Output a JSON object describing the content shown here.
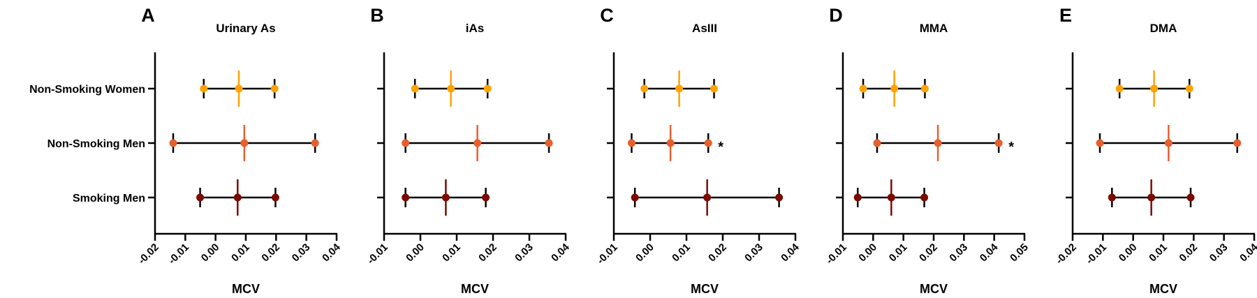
{
  "chart_data": {
    "type": "forest",
    "groups": [
      "Non-Smoking Women",
      "Non-Smoking Men",
      "Smoking Men"
    ],
    "colors": {
      "Non-Smoking Women": "#FFA200",
      "Non-Smoking Men": "#E85E2C",
      "Smoking Men": "#7A0A02"
    },
    "panels": [
      {
        "letter": "A",
        "title": "Urinary As",
        "xlabel": "MCV",
        "xlim": [
          -0.02,
          0.04
        ],
        "ticks": [
          "-0.02",
          "-0.01",
          "0.00",
          "0.01",
          "0.02",
          "0.03",
          "0.04"
        ],
        "show_group_labels": true,
        "estimates": [
          {
            "group": "Non-Smoking Women",
            "low": -0.0039,
            "mean": 0.0077,
            "high": 0.0195,
            "sig": ""
          },
          {
            "group": "Non-Smoking Men",
            "low": -0.014,
            "mean": 0.0095,
            "high": 0.0329,
            "sig": ""
          },
          {
            "group": "Smoking Men",
            "low": -0.0051,
            "mean": 0.0073,
            "high": 0.0198,
            "sig": ""
          }
        ]
      },
      {
        "letter": "B",
        "title": "iAs",
        "xlabel": "MCV",
        "xlim": [
          -0.01,
          0.04
        ],
        "ticks": [
          "-0.01",
          "0.00",
          "0.01",
          "0.02",
          "0.03",
          "0.04"
        ],
        "show_group_labels": false,
        "estimates": [
          {
            "group": "Non-Smoking Women",
            "low": -0.0015,
            "mean": 0.0084,
            "high": 0.0185,
            "sig": ""
          },
          {
            "group": "Non-Smoking Men",
            "low": -0.0041,
            "mean": 0.0157,
            "high": 0.0354,
            "sig": ""
          },
          {
            "group": "Smoking Men",
            "low": -0.0041,
            "mean": 0.007,
            "high": 0.018,
            "sig": ""
          }
        ]
      },
      {
        "letter": "C",
        "title": "AsIII",
        "xlabel": "MCV",
        "xlim": [
          -0.01,
          0.04
        ],
        "ticks": [
          "-0.01",
          "0.00",
          "0.01",
          "0.02",
          "0.03",
          "0.04"
        ],
        "show_group_labels": false,
        "estimates": [
          {
            "group": "Non-Smoking Women",
            "low": -0.0016,
            "mean": 0.008,
            "high": 0.0176,
            "sig": ""
          },
          {
            "group": "Non-Smoking Men",
            "low": -0.0051,
            "mean": 0.0056,
            "high": 0.016,
            "sig": "*"
          },
          {
            "group": "Smoking Men",
            "low": -0.0042,
            "mean": 0.0157,
            "high": 0.0355,
            "sig": ""
          }
        ]
      },
      {
        "letter": "D",
        "title": "MMA",
        "xlabel": "MCV",
        "xlim": [
          -0.01,
          0.05
        ],
        "ticks": [
          "-0.01",
          "0.00",
          "0.01",
          "0.02",
          "0.03",
          "0.04",
          "0.05"
        ],
        "show_group_labels": false,
        "estimates": [
          {
            "group": "Non-Smoking Women",
            "low": -0.0033,
            "mean": 0.007,
            "high": 0.0171,
            "sig": ""
          },
          {
            "group": "Non-Smoking Men",
            "low": 0.0013,
            "mean": 0.0214,
            "high": 0.0415,
            "sig": "*"
          },
          {
            "group": "Smoking Men",
            "low": -0.0051,
            "mean": 0.006,
            "high": 0.0169,
            "sig": ""
          }
        ]
      },
      {
        "letter": "E",
        "title": "DMA",
        "xlabel": "MCV",
        "xlim": [
          -0.02,
          0.04
        ],
        "ticks": [
          "-0.02",
          "-0.01",
          "0.00",
          "0.01",
          "0.02",
          "0.03",
          "0.04"
        ],
        "show_group_labels": false,
        "estimates": [
          {
            "group": "Non-Smoking Women",
            "low": -0.0045,
            "mean": 0.0069,
            "high": 0.0186,
            "sig": ""
          },
          {
            "group": "Non-Smoking Men",
            "low": -0.011,
            "mean": 0.0117,
            "high": 0.0344,
            "sig": ""
          },
          {
            "group": "Smoking Men",
            "low": -0.007,
            "mean": 0.006,
            "high": 0.019,
            "sig": ""
          }
        ]
      }
    ]
  }
}
